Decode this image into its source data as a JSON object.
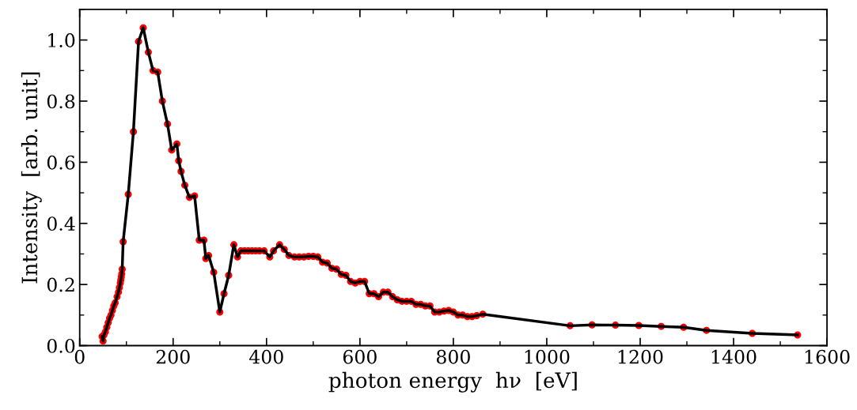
{
  "chart_data": {
    "type": "line",
    "xlabel": "photon energy  hν  [eV]",
    "ylabel": "Intensity  [arb. unit]",
    "xlim": [
      0,
      1600
    ],
    "xticks": [
      0,
      200,
      400,
      600,
      800,
      1000,
      1200,
      1400,
      1600
    ],
    "ylim": [
      0,
      1.1
    ],
    "yticks": [
      {
        "value": 0,
        "label": "0.0"
      },
      {
        "value": 0.2,
        "label": "0.2"
      },
      {
        "value": 0.4,
        "label": "0.4"
      },
      {
        "value": 0.6,
        "label": "0.6"
      },
      {
        "value": 0.8,
        "label": "0.8"
      },
      {
        "value": 1.0,
        "label": "1.0"
      }
    ],
    "grid": false,
    "legend": false,
    "marker": "circle",
    "line_style": "solid",
    "series": [
      {
        "color": "#ff0000",
        "x": [
          48,
          50,
          52,
          55,
          58,
          61,
          64,
          67,
          70,
          73,
          76,
          80,
          83,
          85,
          87,
          88,
          89,
          90,
          91,
          93,
          104,
          115,
          126,
          136,
          147,
          157,
          167,
          177,
          188,
          197,
          208,
          212,
          217,
          225,
          235,
          246,
          256,
          266,
          270,
          276,
          287,
          300,
          309,
          319,
          330,
          338,
          345,
          353,
          361,
          369,
          377,
          385,
          395,
          407,
          415,
          428,
          438,
          448,
          460,
          470,
          480,
          490,
          500,
          510,
          520,
          530,
          540,
          550,
          560,
          570,
          580,
          590,
          600,
          610,
          620,
          630,
          640,
          650,
          660,
          670,
          680,
          690,
          700,
          710,
          720,
          730,
          740,
          750,
          760,
          770,
          780,
          790,
          800,
          810,
          820,
          830,
          840,
          850,
          863,
          1050,
          1097,
          1147,
          1197,
          1245,
          1293,
          1342,
          1440,
          1537
        ],
        "values": [
          0.03,
          0.015,
          0.035,
          0.045,
          0.06,
          0.075,
          0.09,
          0.1,
          0.115,
          0.13,
          0.14,
          0.16,
          0.175,
          0.19,
          0.205,
          0.215,
          0.225,
          0.235,
          0.25,
          0.34,
          0.495,
          0.7,
          0.995,
          1.04,
          0.96,
          0.9,
          0.895,
          0.8,
          0.725,
          0.64,
          0.66,
          0.605,
          0.57,
          0.525,
          0.485,
          0.49,
          0.345,
          0.345,
          0.285,
          0.295,
          0.24,
          0.11,
          0.17,
          0.23,
          0.33,
          0.29,
          0.31,
          0.31,
          0.31,
          0.31,
          0.31,
          0.31,
          0.31,
          0.29,
          0.31,
          0.33,
          0.315,
          0.295,
          0.29,
          0.29,
          0.29,
          0.292,
          0.292,
          0.29,
          0.273,
          0.27,
          0.253,
          0.25,
          0.233,
          0.23,
          0.21,
          0.205,
          0.21,
          0.21,
          0.17,
          0.17,
          0.16,
          0.175,
          0.175,
          0.16,
          0.15,
          0.145,
          0.145,
          0.145,
          0.135,
          0.135,
          0.13,
          0.13,
          0.11,
          0.11,
          0.113,
          0.115,
          0.11,
          0.1,
          0.1,
          0.095,
          0.095,
          0.098,
          0.103,
          0.065,
          0.068,
          0.067,
          0.066,
          0.063,
          0.06,
          0.05,
          0.04,
          0.035
        ]
      }
    ]
  }
}
